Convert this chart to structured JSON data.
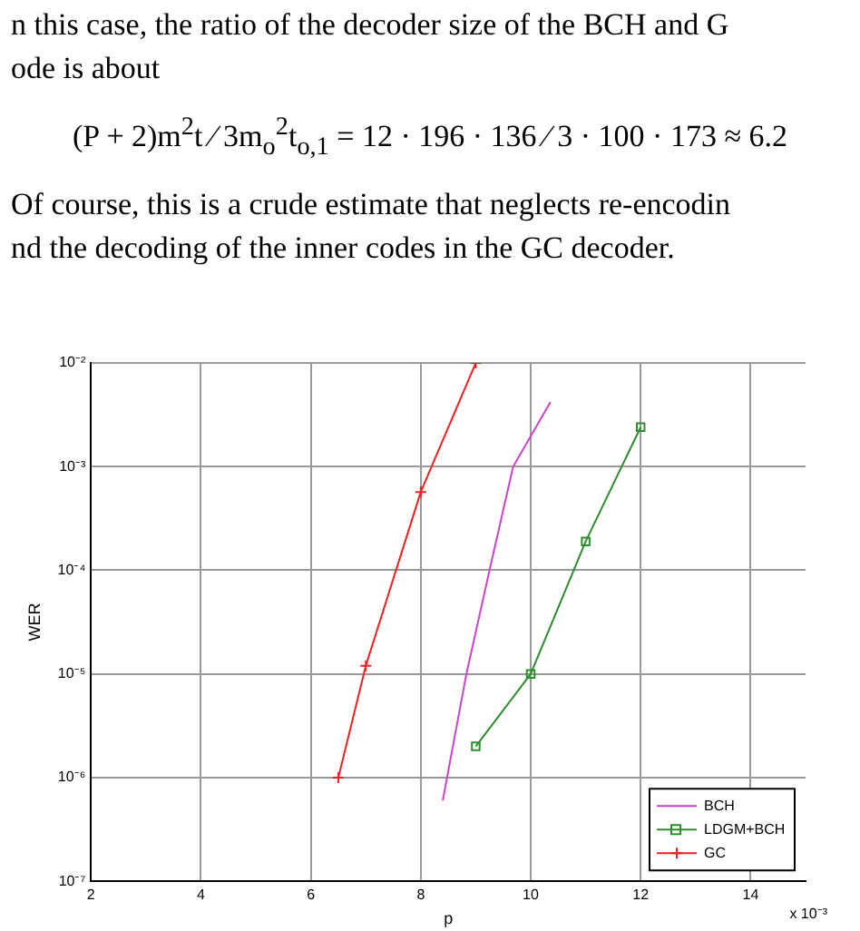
{
  "chart_data": {
    "type": "line",
    "xlabel": "p",
    "ylabel": "WER",
    "annotations": [
      "n this case, the ratio of the decoder size of the BCH and G",
      "ode is about",
      "(P + 2)m$^{2}$t ⁄ 3m$_{o}$$^{2}$t$_{o,1}$ = 12 · 196 · 136 ⁄ 3 · 100 · 173 ≈ 6.2",
      "Of course, this is a crude estimate that neglects re-encodin",
      "nd the decoding of the inner codes in the GC decoder.",
      "x 10⁻³"
    ],
    "series": [
      {
        "name": "BCH",
        "color": "#cc44cc",
        "marker": "none",
        "x": [
          8.4,
          8.83,
          9.25,
          9.68,
          10.36
        ],
        "values": [
          6e-07,
          1e-05,
          0.0001,
          0.001,
          0.0042
        ]
      },
      {
        "name": "LDGM+BCH",
        "color": "#2e8b2e",
        "marker": "square",
        "x": [
          9,
          10,
          11,
          12
        ],
        "values": [
          2e-06,
          1e-05,
          0.00019,
          0.0024
        ]
      },
      {
        "name": "GC",
        "color": "#ee2222",
        "marker": "cross",
        "x": [
          6.5,
          7,
          8,
          9
        ],
        "values": [
          1e-06,
          1.2e-05,
          0.00057,
          0.01
        ]
      }
    ],
    "xlim": [
      2,
      15
    ],
    "xticks": [
      2,
      4,
      6,
      8,
      10,
      12,
      14
    ],
    "ylim": [
      1e-07,
      0.01
    ],
    "yticks": [
      {
        "value": 1e-07,
        "label": "10⁻⁷"
      },
      {
        "value": 1e-06,
        "label": "10⁻⁶"
      },
      {
        "value": 1e-05,
        "label": "10⁻⁵"
      },
      {
        "value": 0.0001,
        "label": "10⁻⁴"
      },
      {
        "value": 0.001,
        "label": "10⁻³"
      },
      {
        "value": 0.01,
        "label": "10⁻²"
      }
    ],
    "log": "y",
    "grid": true,
    "legend": "bottom right",
    "line_style": "solid"
  }
}
